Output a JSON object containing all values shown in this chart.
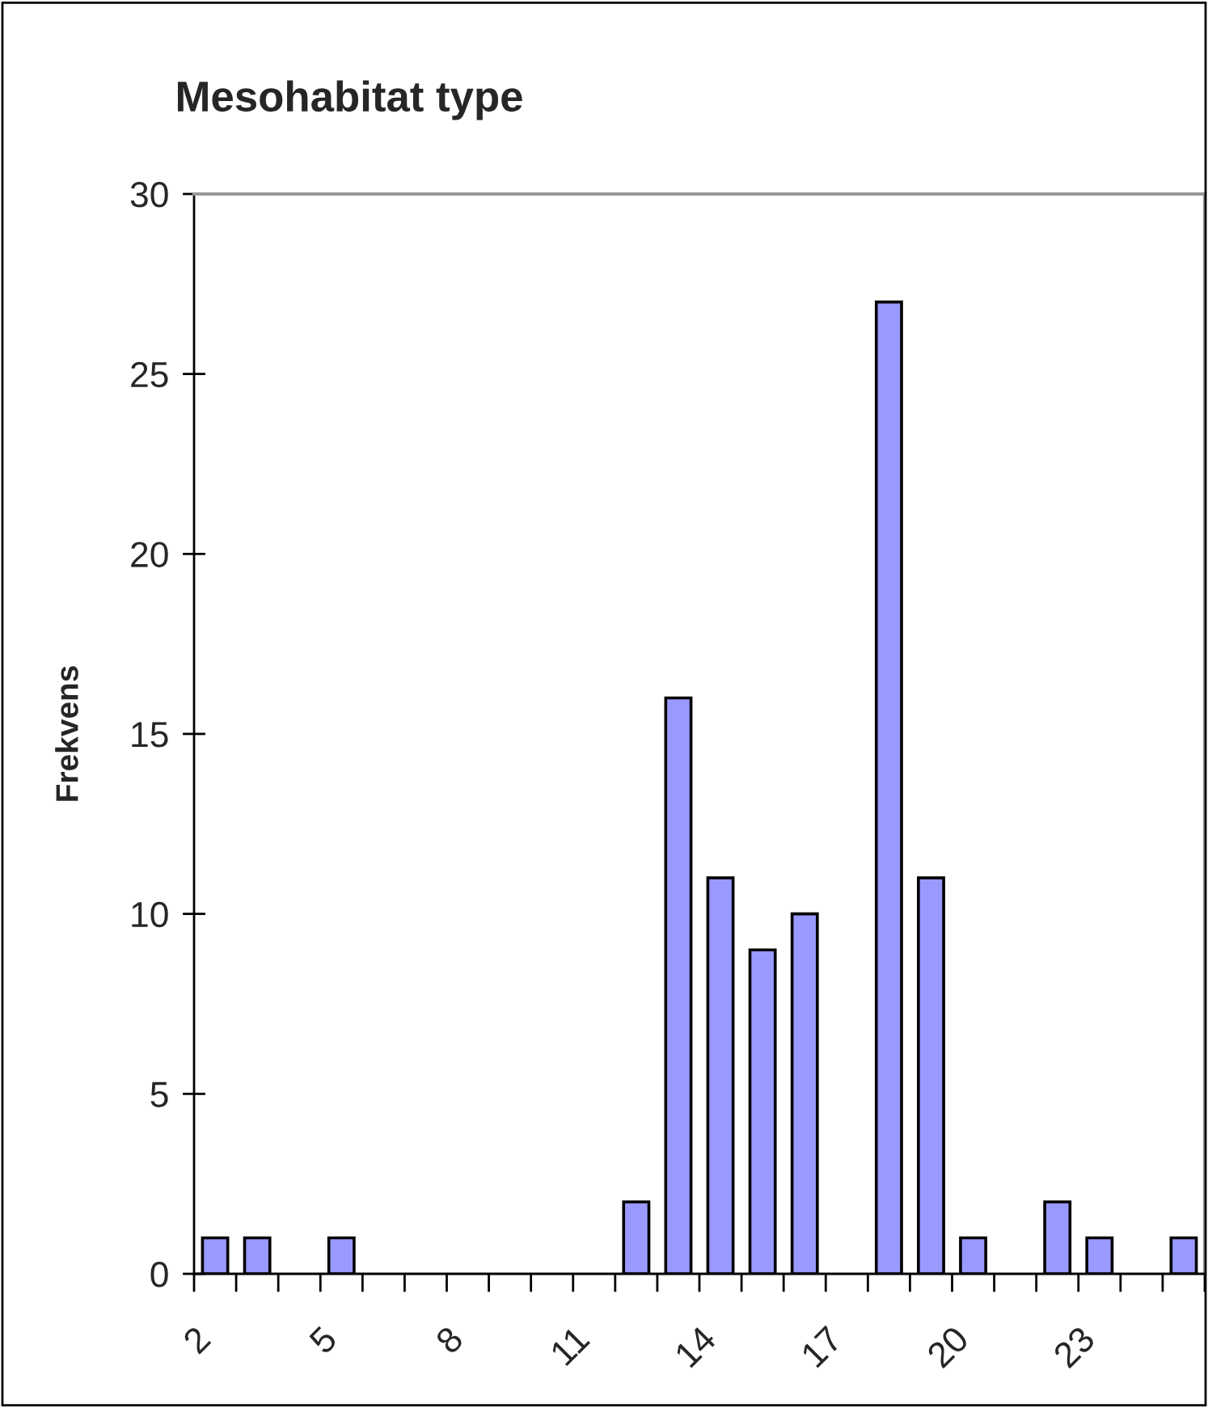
{
  "chart_data": {
    "type": "histogram",
    "title": "Mesohabitat type",
    "ylabel": "Frekvens",
    "bins": [
      2,
      3,
      4,
      5,
      6,
      7,
      8,
      9,
      10,
      11,
      12,
      13,
      14,
      15,
      16,
      17,
      18,
      19,
      20,
      21,
      22,
      23,
      24,
      25,
      26
    ],
    "values": [
      1,
      1,
      0,
      1,
      0,
      0,
      0,
      0,
      0,
      0,
      2,
      16,
      11,
      9,
      10,
      0,
      27,
      11,
      1,
      0,
      2,
      1,
      0,
      1
    ],
    "color": "#9999ff",
    "xlim": [
      2,
      26
    ],
    "xticks": [
      2,
      {
        "value": 3,
        "label": null
      },
      {
        "value": 4,
        "label": null
      },
      5,
      {
        "value": 6,
        "label": null
      },
      {
        "value": 7,
        "label": null
      },
      8,
      {
        "value": 9,
        "label": null
      },
      {
        "value": 10,
        "label": null
      },
      11,
      {
        "value": 12,
        "label": null
      },
      {
        "value": 13,
        "label": null
      },
      14,
      {
        "value": 15,
        "label": null
      },
      {
        "value": 16,
        "label": null
      },
      17,
      {
        "value": 18,
        "label": null
      },
      {
        "value": 19,
        "label": null
      },
      20,
      {
        "value": 21,
        "label": null
      },
      {
        "value": 22,
        "label": null
      },
      23,
      {
        "value": 24,
        "label": null
      },
      {
        "value": 25,
        "label": null
      },
      {
        "value": 26,
        "label": null
      }
    ],
    "ylim": [
      0,
      30
    ],
    "yticks": [
      0,
      5,
      10,
      15,
      20,
      25,
      30
    ],
    "grid": false
  }
}
